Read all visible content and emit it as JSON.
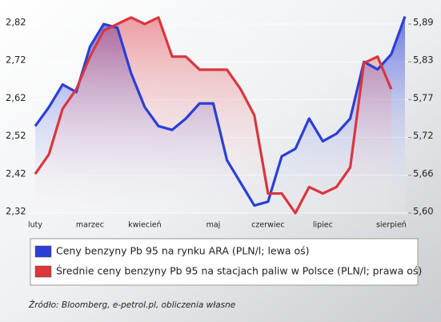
{
  "chart_data": {
    "type": "line",
    "categories": [
      "luty",
      null,
      null,
      null,
      "marzec",
      null,
      null,
      null,
      "kwiecień",
      null,
      null,
      null,
      null,
      "maj",
      null,
      null,
      null,
      "czerwiec",
      null,
      null,
      null,
      "lipiec",
      null,
      null,
      null,
      null,
      "sierpień",
      null
    ],
    "series": [
      {
        "name": "Ceny benzyny Pb 95 na rynku ARA (PLN/l; lewa oś)",
        "color": "#2b3fd3",
        "values": [
          2.55,
          2.6,
          2.66,
          2.64,
          2.76,
          2.82,
          2.81,
          2.69,
          2.6,
          2.55,
          2.54,
          2.57,
          2.61,
          2.61,
          2.46,
          2.4,
          2.34,
          2.35,
          2.47,
          2.49,
          2.57,
          2.51,
          2.53,
          2.57,
          2.72,
          2.7,
          2.74,
          2.84
        ]
      },
      {
        "name": "Średnie ceny benzyny Pb 95 na stacjach paliw w Polsce (PLN/l; prawa oś)",
        "color": "#d9363e",
        "axis": "y2",
        "values": [
          5.66,
          5.69,
          5.76,
          5.79,
          5.84,
          5.88,
          5.89,
          5.9,
          5.89,
          5.9,
          5.84,
          5.84,
          5.82,
          5.82,
          5.82,
          5.79,
          5.75,
          5.63,
          5.63,
          5.6,
          5.64,
          5.63,
          5.64,
          5.67,
          5.83,
          5.84,
          5.79,
          null
        ]
      }
    ],
    "ylim": [
      2.32,
      2.82
    ],
    "yticks": [
      {
        "value": 2.32,
        "label": "2,32"
      },
      {
        "value": 2.42,
        "label": "2,42"
      },
      {
        "value": 2.52,
        "label": "2,52"
      },
      {
        "value": 2.62,
        "label": "2,62"
      },
      {
        "value": 2.72,
        "label": "2,72"
      },
      {
        "value": 2.82,
        "label": "2,82"
      }
    ],
    "y2lim": [
      5.6,
      5.89
    ],
    "y2ticks": [
      {
        "value": 5.6,
        "label": "5,60"
      },
      {
        "value": 5.658,
        "label": "5,66"
      },
      {
        "value": 5.716,
        "label": "5,72"
      },
      {
        "value": 5.774,
        "label": "5,77"
      },
      {
        "value": 5.832,
        "label": "5,83"
      },
      {
        "value": 5.89,
        "label": "5,89"
      }
    ],
    "grid": true,
    "source": "Źródło: Bloomberg, e-petrol.pl, obliczenia własne"
  }
}
